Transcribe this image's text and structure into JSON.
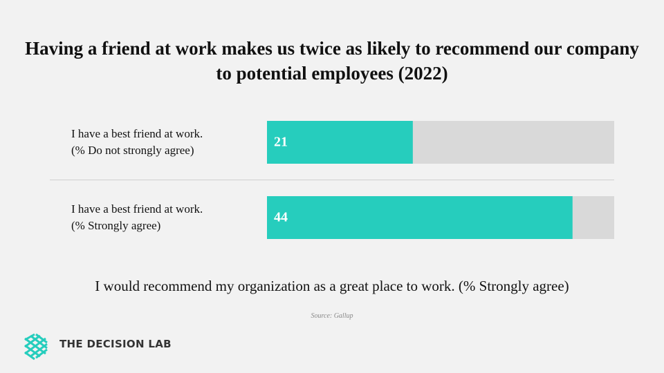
{
  "chart_data": {
    "type": "hbar",
    "title": "Having a friend at work makes us twice as likely to recommend our company to potential employees (2022)",
    "categories": [
      "I have a best friend at work.\n(% Do not strongly agree)",
      "I have a best friend at work.\n(% Strongly agree)"
    ],
    "values": [
      21,
      44
    ],
    "color": "#26cdbd",
    "track_color": "#d9d9d9",
    "xlim": [
      0,
      50
    ],
    "xlabel": "I would recommend my organization as a great place to work. (% Strongly agree)",
    "source": "Source: Gallup",
    "brand": "THE DECISION LAB"
  }
}
